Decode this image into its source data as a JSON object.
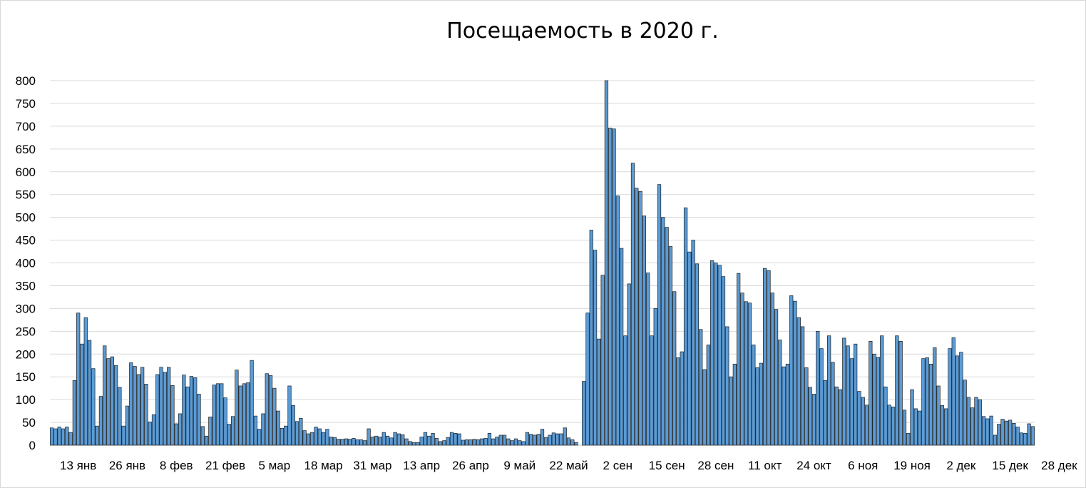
{
  "chart_data": {
    "type": "bar",
    "title": "Посещаемость в 2020 г.",
    "xlabel": "",
    "ylabel": "",
    "ylim": [
      0,
      800
    ],
    "yticks": [
      0,
      50,
      100,
      150,
      200,
      250,
      300,
      350,
      400,
      450,
      500,
      550,
      600,
      650,
      700,
      750,
      800
    ],
    "grid": true,
    "legend": "none",
    "bar_color": "#5b9bd5",
    "bar_edge_color": "#1f1f1f",
    "x_tick_labels": [
      {
        "label": "13 янв",
        "index": 7
      },
      {
        "label": "26 янв",
        "index": 20
      },
      {
        "label": "8 фев",
        "index": 33
      },
      {
        "label": "21 фев",
        "index": 46
      },
      {
        "label": "5 мар",
        "index": 59
      },
      {
        "label": "18 мар",
        "index": 72
      },
      {
        "label": "31 мар",
        "index": 85
      },
      {
        "label": "13 апр",
        "index": 98
      },
      {
        "label": "26 апр",
        "index": 111
      },
      {
        "label": "9 май",
        "index": 124
      },
      {
        "label": "22 май",
        "index": 137
      },
      {
        "label": "2 сен",
        "index": 150
      },
      {
        "label": "15 сен",
        "index": 163
      },
      {
        "label": "28 сен",
        "index": 176
      },
      {
        "label": "11 окт",
        "index": 189
      },
      {
        "label": "24 окт",
        "index": 202
      },
      {
        "label": "6 ноя",
        "index": 215
      },
      {
        "label": "19 ноя",
        "index": 228
      },
      {
        "label": "2 дек",
        "index": 241
      },
      {
        "label": "15 дек",
        "index": 254
      },
      {
        "label": "28 дек",
        "index": 267
      }
    ],
    "values": [
      38,
      36,
      40,
      36,
      40,
      28,
      142,
      290,
      222,
      280,
      230,
      168,
      42,
      107,
      218,
      190,
      194,
      175,
      127,
      42,
      86,
      181,
      173,
      155,
      171,
      134,
      51,
      67,
      155,
      171,
      160,
      171,
      131,
      47,
      69,
      154,
      128,
      151,
      148,
      112,
      41,
      20,
      62,
      132,
      135,
      135,
      104,
      46,
      63,
      165,
      130,
      135,
      137,
      186,
      64,
      35,
      69,
      157,
      153,
      125,
      75,
      37,
      42,
      130,
      87,
      52,
      59,
      32,
      25,
      28,
      40,
      36,
      28,
      35,
      18,
      17,
      13,
      13,
      14,
      13,
      15,
      12,
      12,
      10,
      36,
      18,
      20,
      18,
      28,
      20,
      16,
      28,
      25,
      23,
      14,
      8,
      6,
      6,
      18,
      28,
      20,
      26,
      15,
      8,
      10,
      17,
      28,
      26,
      25,
      11,
      12,
      12,
      13,
      12,
      14,
      15,
      26,
      14,
      18,
      22,
      22,
      14,
      10,
      14,
      10,
      8,
      28,
      24,
      22,
      24,
      35,
      17,
      22,
      27,
      25,
      25,
      38,
      16,
      12,
      6,
      0,
      140,
      290,
      472,
      428,
      233,
      373,
      800,
      696,
      694,
      547,
      432,
      240,
      354,
      619,
      564,
      557,
      503,
      378,
      240,
      300,
      572,
      500,
      478,
      436,
      337,
      192,
      205,
      521,
      424,
      450,
      398,
      254,
      166,
      220,
      405,
      400,
      395,
      370,
      260,
      150,
      178,
      377,
      334,
      315,
      312,
      220,
      170,
      180,
      388,
      383,
      334,
      298,
      231,
      172,
      178,
      328,
      316,
      280,
      260,
      170,
      127,
      112,
      250,
      212,
      142,
      240,
      182,
      128,
      122,
      235,
      218,
      190,
      222,
      118,
      105,
      88,
      228,
      200,
      193,
      240,
      128,
      88,
      84,
      240,
      228,
      77,
      26,
      122,
      80,
      75,
      190,
      192,
      178,
      214,
      130,
      87,
      80,
      212,
      236,
      196,
      204,
      143,
      105,
      82,
      105,
      100,
      63,
      58,
      64,
      22,
      46,
      57,
      53,
      55,
      48,
      40,
      27,
      26,
      47,
      41
    ]
  }
}
